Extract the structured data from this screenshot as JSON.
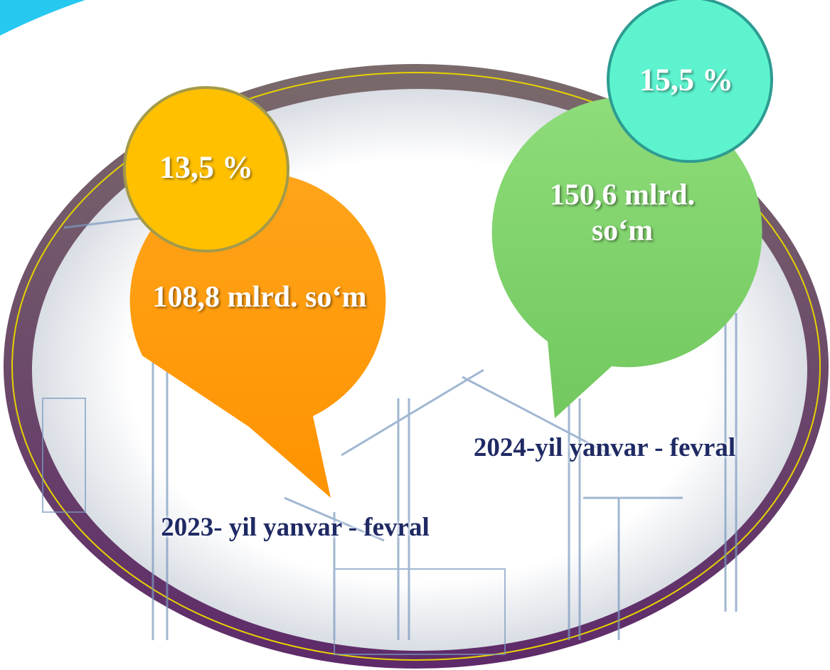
{
  "items": [
    {
      "percent": "13,5 %",
      "amount": "108,8 mlrd. so‘m",
      "period": "2023- yil yanvar - fevral"
    },
    {
      "percent": "15,5 %",
      "amount": "150,6 mlrd. so‘m",
      "period": "2024-yil yanvar - fevral"
    }
  ]
}
